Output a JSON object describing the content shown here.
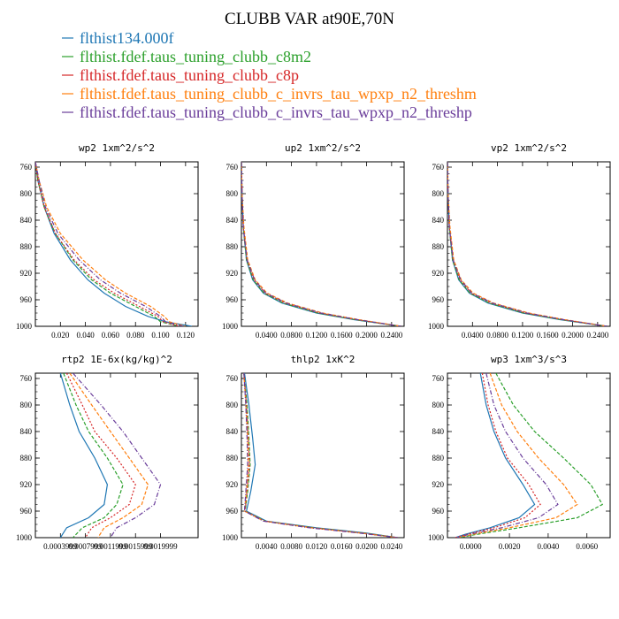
{
  "title": "CLUBB VAR at90E,70N",
  "legend": [
    {
      "name": "flthist134.000f",
      "color": "#1f77b4"
    },
    {
      "name": "flthist.fdef.taus_tuning_clubb_c8m2",
      "color": "#2ca02c"
    },
    {
      "name": "flthist.fdef.taus_tuning_clubb_c8p",
      "color": "#d62728"
    },
    {
      "name": "flthist.fdef.taus_tuning_clubb_c_invrs_tau_wpxp_n2_threshm",
      "color": "#ff7f0e"
    },
    {
      "name": "flthist.fdef.taus_tuning_clubb_c_invrs_tau_wpxp_n2_threshp",
      "color": "#6a3d9a"
    }
  ],
  "chart_data": [
    {
      "type": "line",
      "title": "wp2  1xm^2/s^2",
      "y_ticks": [
        760,
        800,
        840,
        880,
        920,
        960,
        1000
      ],
      "ylim": [
        1000,
        752
      ],
      "xlim": [
        0,
        0.13
      ],
      "x_ticks": [
        0.02,
        0.04,
        0.06,
        0.08,
        0.1,
        0.12
      ],
      "x_tick_labels": [
        "0.020",
        "0.040",
        "0.060",
        "0.080",
        "0.100",
        "0.120"
      ],
      "y": [
        752,
        780,
        820,
        860,
        900,
        930,
        950,
        970,
        985,
        993,
        1000
      ],
      "series": [
        {
          "values": [
            0.0,
            0.002,
            0.007,
            0.015,
            0.028,
            0.042,
            0.055,
            0.072,
            0.09,
            0.104,
            0.125
          ]
        },
        {
          "values": [
            0.0,
            0.002,
            0.007,
            0.016,
            0.03,
            0.045,
            0.06,
            0.08,
            0.095,
            0.1,
            0.115
          ]
        },
        {
          "values": [
            0.0,
            0.002,
            0.007,
            0.016,
            0.031,
            0.047,
            0.063,
            0.083,
            0.098,
            0.102,
            0.115
          ]
        },
        {
          "values": [
            0.0,
            0.003,
            0.009,
            0.02,
            0.038,
            0.056,
            0.072,
            0.092,
            0.103,
            0.107,
            0.12
          ]
        },
        {
          "values": [
            0.0,
            0.003,
            0.008,
            0.018,
            0.035,
            0.052,
            0.068,
            0.088,
            0.1,
            0.104,
            0.118
          ]
        }
      ]
    },
    {
      "type": "line",
      "title": "up2  1xm^2/s^2",
      "y_ticks": [
        760,
        800,
        840,
        880,
        920,
        960,
        1000
      ],
      "ylim": [
        1000,
        752
      ],
      "xlim": [
        0,
        0.26
      ],
      "x_ticks": [
        0.04,
        0.08,
        0.12,
        0.16,
        0.2,
        0.24
      ],
      "x_tick_labels": [
        "0.0400",
        "0.0800",
        "0.1200",
        "0.1600",
        "0.2000",
        "0.2400"
      ],
      "y": [
        752,
        800,
        850,
        900,
        930,
        950,
        965,
        980,
        990,
        1000
      ],
      "series": [
        {
          "values": [
            0.0,
            0.001,
            0.003,
            0.008,
            0.018,
            0.035,
            0.065,
            0.12,
            0.18,
            0.255
          ]
        },
        {
          "values": [
            0.0,
            0.001,
            0.003,
            0.008,
            0.019,
            0.036,
            0.067,
            0.122,
            0.182,
            0.255
          ]
        },
        {
          "values": [
            0.0,
            0.001,
            0.003,
            0.009,
            0.02,
            0.038,
            0.07,
            0.125,
            0.185,
            0.255
          ]
        },
        {
          "values": [
            0.0,
            0.001,
            0.004,
            0.01,
            0.022,
            0.041,
            0.074,
            0.13,
            0.188,
            0.255
          ]
        },
        {
          "values": [
            0.0,
            0.001,
            0.003,
            0.009,
            0.021,
            0.039,
            0.072,
            0.127,
            0.186,
            0.255
          ]
        }
      ]
    },
    {
      "type": "line",
      "title": "vp2  1xm^2/s^2",
      "y_ticks": [
        760,
        800,
        840,
        880,
        920,
        960,
        1000
      ],
      "ylim": [
        1000,
        752
      ],
      "xlim": [
        0,
        0.26
      ],
      "x_ticks": [
        0.04,
        0.08,
        0.12,
        0.16,
        0.2,
        0.24
      ],
      "x_tick_labels": [
        "0.0400",
        "0.0800",
        "0.1200",
        "0.1600",
        "0.2000",
        "0.2400"
      ],
      "y": [
        752,
        800,
        850,
        900,
        930,
        950,
        965,
        980,
        990,
        1000
      ],
      "series": [
        {
          "values": [
            0.0,
            0.001,
            0.003,
            0.008,
            0.018,
            0.035,
            0.065,
            0.12,
            0.18,
            0.255
          ]
        },
        {
          "values": [
            0.0,
            0.001,
            0.003,
            0.008,
            0.019,
            0.036,
            0.067,
            0.122,
            0.182,
            0.255
          ]
        },
        {
          "values": [
            0.0,
            0.001,
            0.003,
            0.009,
            0.02,
            0.038,
            0.07,
            0.125,
            0.185,
            0.255
          ]
        },
        {
          "values": [
            0.0,
            0.001,
            0.004,
            0.01,
            0.022,
            0.041,
            0.074,
            0.13,
            0.188,
            0.255
          ]
        },
        {
          "values": [
            0.0,
            0.001,
            0.003,
            0.009,
            0.021,
            0.039,
            0.072,
            0.127,
            0.186,
            0.255
          ]
        }
      ]
    },
    {
      "type": "line",
      "title": "rtp2  1E-6x(kg/kg)^2",
      "y_ticks": [
        760,
        800,
        840,
        880,
        920,
        960,
        1000
      ],
      "ylim": [
        1000,
        752
      ],
      "xlim": [
        0,
        2.6e-06
      ],
      "x_ticks": [
        4e-07,
        8e-07,
        1.2e-06,
        1.6e-06,
        2e-06
      ],
      "x_tick_labels": [
        "0.0003999",
        "0.0007999",
        "0.0011999",
        "0.0015999",
        "0.0019999"
      ],
      "y": [
        752,
        800,
        840,
        880,
        920,
        950,
        970,
        985,
        1000
      ],
      "series": [
        {
          "values": [
            4e-07,
            5.5e-07,
            7e-07,
            9.5e-07,
            1.15e-06,
            1.1e-06,
            8.5e-07,
            5e-07,
            4e-07
          ]
        },
        {
          "values": [
            4.5e-07,
            6.5e-07,
            8.5e-07,
            1.15e-06,
            1.4e-06,
            1.3e-06,
            1.1e-06,
            7.5e-07,
            6e-07
          ]
        },
        {
          "values": [
            5e-07,
            7.5e-07,
            9.5e-07,
            1.3e-06,
            1.6e-06,
            1.5e-06,
            1.2e-06,
            9e-07,
            8e-07
          ]
        },
        {
          "values": [
            5.5e-07,
            9e-07,
            1.2e-06,
            1.5e-06,
            1.8e-06,
            1.7e-06,
            1.4e-06,
            1.1e-06,
            1e-06
          ]
        },
        {
          "values": [
            6e-07,
            1.05e-06,
            1.4e-06,
            1.7e-06,
            2e-06,
            1.9e-06,
            1.6e-06,
            1.3e-06,
            1.2e-06
          ]
        }
      ]
    },
    {
      "type": "line",
      "title": "thlp2  1xK^2",
      "y_ticks": [
        760,
        800,
        840,
        880,
        920,
        960,
        1000
      ],
      "ylim": [
        1000,
        752
      ],
      "xlim": [
        0,
        0.026
      ],
      "x_ticks": [
        0.004,
        0.008,
        0.012,
        0.016,
        0.02,
        0.024
      ],
      "x_tick_labels": [
        "0.0040",
        "0.0080",
        "0.0120",
        "0.0160",
        "0.0200",
        "0.0240"
      ],
      "y": [
        752,
        800,
        850,
        890,
        930,
        960,
        975,
        985,
        993,
        1000
      ],
      "series": [
        {
          "values": [
            0.0005,
            0.0012,
            0.0018,
            0.0022,
            0.0015,
            0.0008,
            0.004,
            0.012,
            0.02,
            0.025
          ]
        },
        {
          "values": [
            0.0004,
            0.0009,
            0.0012,
            0.0014,
            0.001,
            0.0006,
            0.0038,
            0.0115,
            0.0195,
            0.025
          ]
        },
        {
          "values": [
            0.0004,
            0.0008,
            0.0011,
            0.0013,
            0.0009,
            0.0006,
            0.0037,
            0.0113,
            0.0193,
            0.025
          ]
        },
        {
          "values": [
            0.0004,
            0.0007,
            0.001,
            0.0011,
            0.0008,
            0.0005,
            0.0036,
            0.011,
            0.019,
            0.025
          ]
        },
        {
          "values": [
            0.0004,
            0.0007,
            0.0009,
            0.001,
            0.0007,
            0.0005,
            0.0035,
            0.0108,
            0.0188,
            0.025
          ]
        }
      ]
    },
    {
      "type": "line",
      "title": "wp3  1xm^3/s^3",
      "y_ticks": [
        760,
        800,
        840,
        880,
        920,
        960,
        1000
      ],
      "ylim": [
        1000,
        752
      ],
      "xlim": [
        -0.0012,
        0.0072
      ],
      "x_ticks": [
        0.0,
        0.002,
        0.004,
        0.006
      ],
      "x_tick_labels": [
        "0.0000",
        "0.0020",
        "0.0040",
        "0.0060"
      ],
      "y": [
        752,
        800,
        840,
        880,
        920,
        950,
        970,
        985,
        995,
        1000
      ],
      "series": [
        {
          "values": [
            0.0005,
            0.0008,
            0.0012,
            0.0018,
            0.0027,
            0.0033,
            0.0025,
            0.001,
            -0.0003,
            -0.0008
          ]
        },
        {
          "values": [
            0.0013,
            0.0022,
            0.0033,
            0.0048,
            0.0062,
            0.0068,
            0.0055,
            0.0025,
            0.0003,
            -0.0006
          ]
        },
        {
          "values": [
            0.0006,
            0.0009,
            0.0013,
            0.0019,
            0.003,
            0.0036,
            0.0028,
            0.0012,
            -0.0002,
            -0.0008
          ]
        },
        {
          "values": [
            0.001,
            0.0016,
            0.0024,
            0.0035,
            0.0048,
            0.0055,
            0.0044,
            0.002,
            0.0001,
            -0.0007
          ]
        },
        {
          "values": [
            0.0008,
            0.0012,
            0.0018,
            0.0027,
            0.0039,
            0.0045,
            0.0035,
            0.0016,
            -0.0001,
            -0.0007
          ]
        }
      ]
    }
  ]
}
